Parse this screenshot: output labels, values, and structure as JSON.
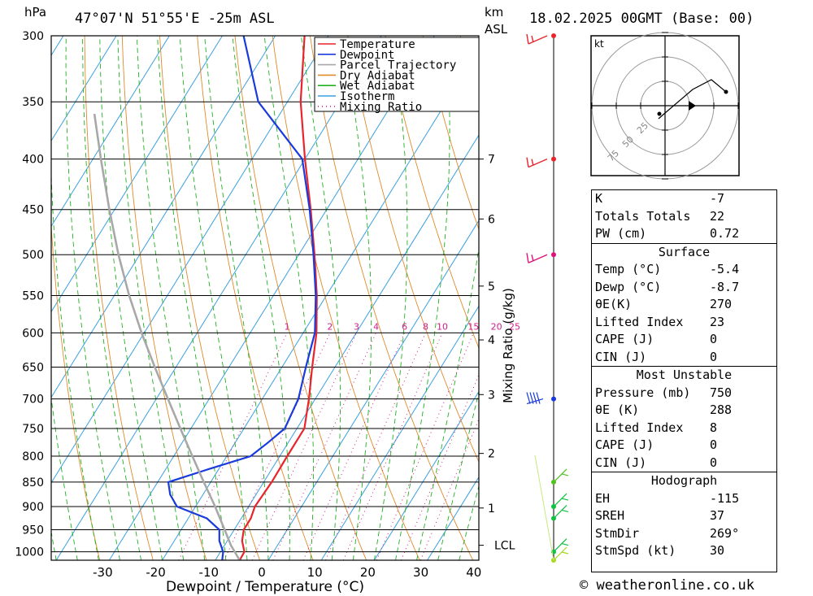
{
  "header": {
    "location": "47°07'N  51°55'E  -25m  ASL",
    "datetime": "18.02.2025  00GMT  (Base: 00)",
    "pressure_unit": "hPa",
    "height_unit_1": "km",
    "height_unit_2": "ASL"
  },
  "chart_data": {
    "type": "line",
    "title": "Skew-T log-P diagram",
    "xlabel": "Dewpoint / Temperature (°C)",
    "ylabel": "hPa",
    "right_axis_label": "Mixing Ratio (g/kg)",
    "x_ticks": [
      -30,
      -20,
      -10,
      0,
      10,
      20,
      30,
      40
    ],
    "pressure_levels": [
      300,
      350,
      400,
      450,
      500,
      550,
      600,
      650,
      700,
      750,
      800,
      850,
      900,
      950,
      1000
    ],
    "ylim": [
      1020,
      300
    ],
    "km_ticks": [
      {
        "label": "7",
        "p": 400
      },
      {
        "label": "6",
        "p": 460
      },
      {
        "label": "5",
        "p": 538
      },
      {
        "label": "4",
        "p": 610
      },
      {
        "label": "3",
        "p": 693
      },
      {
        "label": "2",
        "p": 795
      },
      {
        "label": "1",
        "p": 903
      },
      {
        "label": "LCL",
        "p": 985
      }
    ],
    "mixing_ratio_labels": [
      "1",
      "2",
      "3",
      "4",
      "6",
      "8",
      "10",
      "15",
      "20",
      "25"
    ],
    "legend": [
      "Temperature",
      "Dewpoint",
      "Parcel Trajectory",
      "Dry Adiabat",
      "Wet Adiabat",
      "Isotherm",
      "Mixing Ratio"
    ],
    "series": [
      {
        "name": "Temperature",
        "color": "#e8242c",
        "points": [
          [
            1020,
            -5.4
          ],
          [
            1000,
            -5.5
          ],
          [
            975,
            -7.2
          ],
          [
            950,
            -8.2
          ],
          [
            925,
            -8.2
          ],
          [
            900,
            -8.8
          ],
          [
            850,
            -8.5
          ],
          [
            800,
            -8.6
          ],
          [
            750,
            -8.6
          ],
          [
            700,
            -11.2
          ],
          [
            650,
            -14.3
          ],
          [
            600,
            -17.5
          ],
          [
            550,
            -21.8
          ],
          [
            500,
            -27.0
          ],
          [
            450,
            -33.0
          ],
          [
            400,
            -40.0
          ],
          [
            350,
            -47.5
          ],
          [
            300,
            -54.5
          ]
        ]
      },
      {
        "name": "Dewpoint",
        "color": "#1a3adc",
        "points": [
          [
            1020,
            -8.7
          ],
          [
            1000,
            -9.5
          ],
          [
            975,
            -11.5
          ],
          [
            950,
            -12.8
          ],
          [
            925,
            -16.5
          ],
          [
            900,
            -23.5
          ],
          [
            875,
            -26.2
          ],
          [
            850,
            -28.0
          ],
          [
            825,
            -22.0
          ],
          [
            800,
            -15.5
          ],
          [
            775,
            -13.8
          ],
          [
            750,
            -12.3
          ],
          [
            700,
            -13.2
          ],
          [
            650,
            -15.5
          ],
          [
            600,
            -17.8
          ],
          [
            550,
            -22.0
          ],
          [
            500,
            -27.2
          ],
          [
            450,
            -33.2
          ],
          [
            400,
            -40.5
          ],
          [
            350,
            -55.5
          ],
          [
            300,
            -66.0
          ]
        ]
      },
      {
        "name": "Parcel Trajectory",
        "color": "#a8a8a8",
        "points": [
          [
            1020,
            -5.4
          ],
          [
            985,
            -8.8
          ],
          [
            950,
            -11.8
          ],
          [
            900,
            -16.3
          ],
          [
            850,
            -21.3
          ],
          [
            800,
            -26.5
          ],
          [
            750,
            -32.0
          ],
          [
            700,
            -37.8
          ],
          [
            650,
            -44.0
          ],
          [
            600,
            -50.5
          ],
          [
            550,
            -57.2
          ],
          [
            500,
            -64.0
          ],
          [
            450,
            -71.0
          ],
          [
            400,
            -78.5
          ],
          [
            360,
            -85.0
          ]
        ]
      }
    ]
  },
  "wind_profile": [
    {
      "p": 300,
      "color": "#e8242c"
    },
    {
      "p": 400,
      "color": "#e8242c"
    },
    {
      "p": 500,
      "color": "#e0107a"
    },
    {
      "p": 700,
      "color": "#1a3adc"
    },
    {
      "p": 850,
      "color": "#4fc020"
    },
    {
      "p": 900,
      "color": "#10c040"
    },
    {
      "p": 925,
      "color": "#10c040"
    },
    {
      "p": 1000,
      "color": "#10c040"
    },
    {
      "p": 1020,
      "color": "#a8d820"
    }
  ],
  "hodograph": {
    "unit": "kt",
    "ring_labels": [
      "25",
      "50",
      "75"
    ]
  },
  "indices": {
    "basic": [
      {
        "label": "K",
        "value": "-7"
      },
      {
        "label": "Totals Totals",
        "value": "22"
      },
      {
        "label": "PW (cm)",
        "value": "0.72"
      }
    ],
    "surface_title": "Surface",
    "surface": [
      {
        "label": "Temp (°C)",
        "value": "-5.4"
      },
      {
        "label": "Dewp (°C)",
        "value": "-8.7"
      },
      {
        "label": "θE(K)",
        "value": "270"
      },
      {
        "label": "Lifted Index",
        "value": "23"
      },
      {
        "label": "CAPE (J)",
        "value": "0"
      },
      {
        "label": "CIN (J)",
        "value": "0"
      }
    ],
    "mu_title": "Most Unstable",
    "mu": [
      {
        "label": "Pressure (mb)",
        "value": "750"
      },
      {
        "label": "θE (K)",
        "value": "288"
      },
      {
        "label": "Lifted Index",
        "value": "8"
      },
      {
        "label": "CAPE (J)",
        "value": "0"
      },
      {
        "label": "CIN (J)",
        "value": "0"
      }
    ],
    "hodo_title": "Hodograph",
    "hodo": [
      {
        "label": "EH",
        "value": "-115"
      },
      {
        "label": "SREH",
        "value": "37"
      },
      {
        "label": "StmDir",
        "value": "269°"
      },
      {
        "label": "StmSpd (kt)",
        "value": "30"
      }
    ]
  },
  "credit": "© weatheronline.co.uk"
}
